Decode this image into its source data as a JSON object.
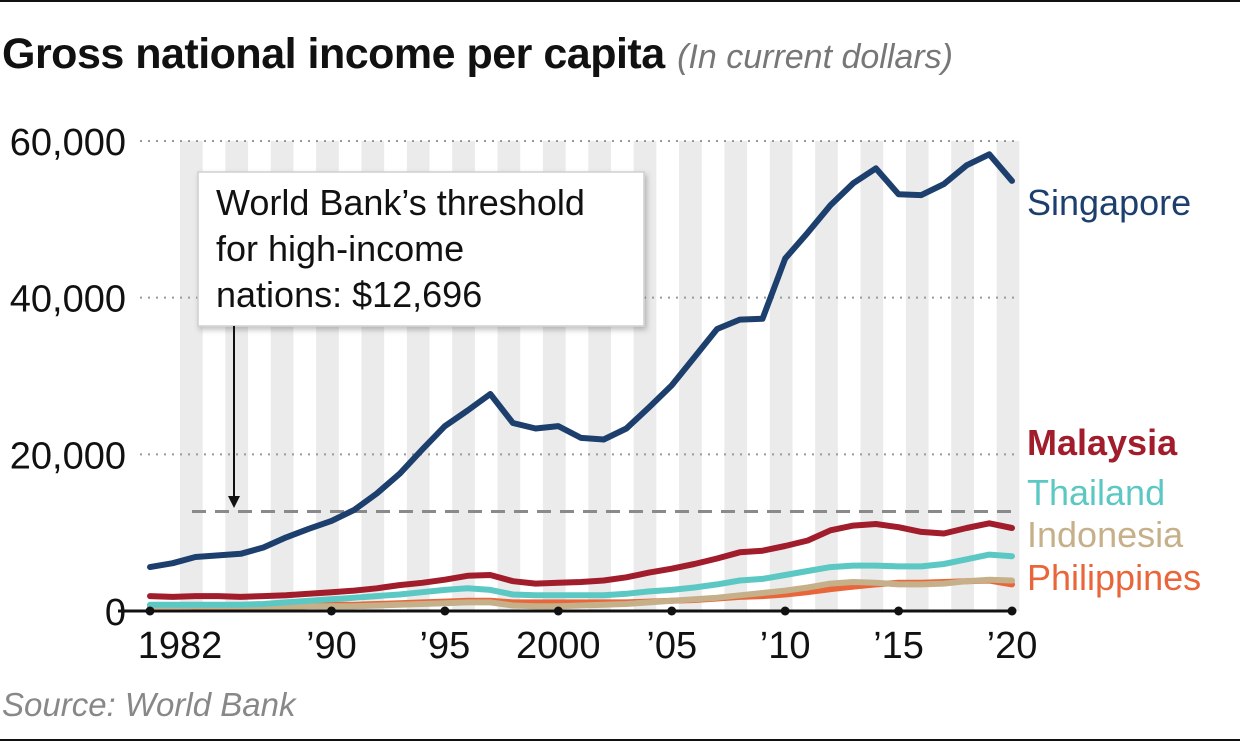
{
  "title": "Gross national income per capita",
  "subtitle": "(In current dollars)",
  "source": "Source: World Bank",
  "annotation": {
    "lines": [
      "World Bank’s threshold",
      "for high-income",
      "nations: $12,696"
    ],
    "value": 12696
  },
  "chart_data": {
    "type": "line",
    "title": "Gross national income per capita",
    "subtitle": "(In current dollars)",
    "x_ticks": [
      {
        "year": 1982,
        "label": "1982"
      },
      {
        "year": 1990,
        "label": "’90"
      },
      {
        "year": 1995,
        "label": "’95"
      },
      {
        "year": 2000,
        "label": "2000"
      },
      {
        "year": 2005,
        "label": "’05"
      },
      {
        "year": 2010,
        "label": "’10"
      },
      {
        "year": 2015,
        "label": "’15"
      },
      {
        "year": 2020,
        "label": "’20"
      }
    ],
    "y_ticks": [
      {
        "value": 0,
        "label": "0"
      },
      {
        "value": 20000,
        "label": "20,000"
      },
      {
        "value": 40000,
        "label": "40,000"
      },
      {
        "value": 60000,
        "label": "60,000"
      }
    ],
    "ylim": [
      0,
      60000
    ],
    "xlim": [
      1982,
      2020
    ],
    "grid": "dotted horizontal",
    "threshold": 12696,
    "x": [
      1982,
      1983,
      1984,
      1985,
      1986,
      1987,
      1988,
      1989,
      1990,
      1991,
      1992,
      1993,
      1994,
      1995,
      1996,
      1997,
      1998,
      1999,
      2000,
      2001,
      2002,
      2003,
      2004,
      2005,
      2006,
      2007,
      2008,
      2009,
      2010,
      2011,
      2012,
      2013,
      2014,
      2015,
      2016,
      2017,
      2018,
      2019,
      2020
    ],
    "series": [
      {
        "name": "Singapore",
        "color": "#1d3f6e",
        "bold": false,
        "values": [
          5600,
          6100,
          6900,
          7100,
          7300,
          8100,
          9400,
          10500,
          11500,
          12900,
          15000,
          17500,
          20600,
          23600,
          25600,
          27700,
          24000,
          23300,
          23600,
          22100,
          21900,
          23300,
          26000,
          28800,
          32400,
          36000,
          37200,
          37300,
          45000,
          48300,
          51800,
          54600,
          56500,
          53200,
          53100,
          54500,
          56900,
          58300,
          54900
        ]
      },
      {
        "name": "Malaysia",
        "color": "#a11d2b",
        "bold": true,
        "values": [
          1900,
          1800,
          1900,
          1900,
          1800,
          1900,
          2000,
          2200,
          2400,
          2600,
          2900,
          3300,
          3600,
          4000,
          4500,
          4600,
          3800,
          3500,
          3600,
          3700,
          3900,
          4300,
          4900,
          5400,
          6000,
          6700,
          7500,
          7700,
          8300,
          9000,
          10300,
          10900,
          11100,
          10700,
          10100,
          9900,
          10600,
          11200,
          10600
        ]
      },
      {
        "name": "Thailand",
        "color": "#5cc8c4",
        "bold": false,
        "values": [
          800,
          800,
          800,
          800,
          800,
          900,
          1100,
          1300,
          1500,
          1700,
          1900,
          2100,
          2400,
          2700,
          2900,
          2700,
          2100,
          2000,
          2000,
          2000,
          2000,
          2200,
          2500,
          2700,
          3000,
          3400,
          3900,
          4100,
          4600,
          5100,
          5600,
          5800,
          5800,
          5700,
          5700,
          6000,
          6600,
          7200,
          7000
        ]
      },
      {
        "name": "Indonesia",
        "color": "#c6b08a",
        "bold": false,
        "values": [
          600,
          600,
          600,
          600,
          600,
          500,
          500,
          600,
          600,
          600,
          700,
          800,
          900,
          1000,
          1100,
          1100,
          700,
          600,
          600,
          700,
          800,
          900,
          1100,
          1300,
          1500,
          1700,
          2000,
          2300,
          2600,
          3000,
          3500,
          3700,
          3600,
          3400,
          3400,
          3500,
          3800,
          4000,
          3900
        ]
      },
      {
        "name": "Philippines",
        "color": "#e8663a",
        "bold": false,
        "values": [
          700,
          700,
          600,
          600,
          600,
          600,
          700,
          700,
          800,
          800,
          900,
          1000,
          1100,
          1200,
          1300,
          1300,
          1100,
          1100,
          1100,
          1100,
          1100,
          1100,
          1200,
          1300,
          1400,
          1600,
          1800,
          1900,
          2100,
          2400,
          2800,
          3100,
          3400,
          3600,
          3600,
          3700,
          3800,
          3900,
          3400
        ]
      }
    ]
  }
}
